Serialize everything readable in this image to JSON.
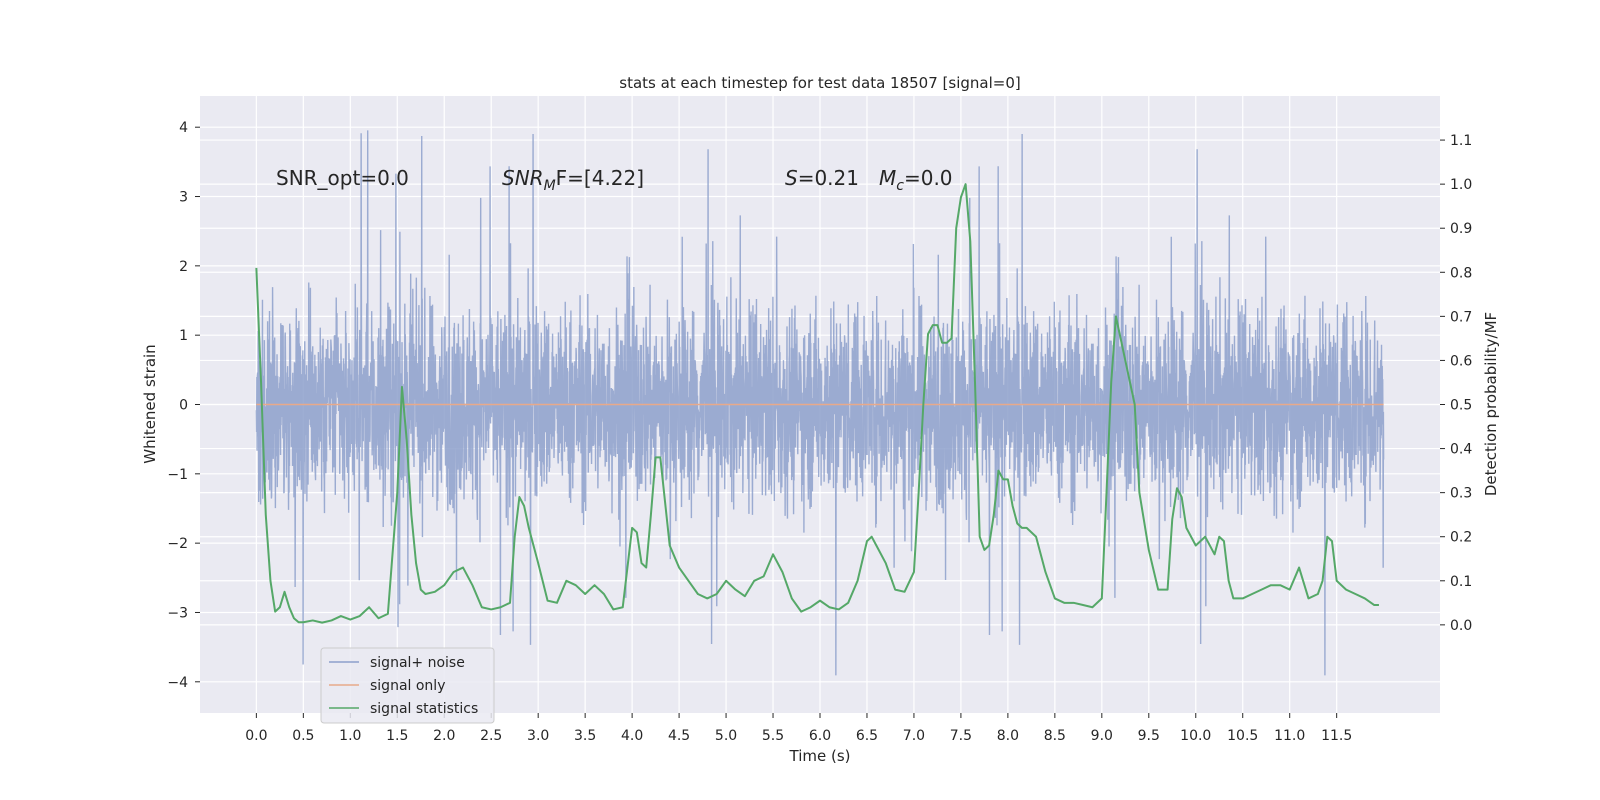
{
  "chart_data": {
    "type": "line",
    "title": "stats at each timestep for test data 18507 [signal=0]",
    "xlabel": "Time (s)",
    "ylabel": "Whitened strain",
    "y2label": "Detection probability/MF",
    "xlim": [
      -0.6,
      12.6
    ],
    "ylim": [
      -4.45,
      4.45
    ],
    "y2lim": [
      -0.2,
      1.2
    ],
    "xticks": [
      0.0,
      0.5,
      1.0,
      1.5,
      2.0,
      2.5,
      3.0,
      3.5,
      4.0,
      4.5,
      5.0,
      5.5,
      6.0,
      6.5,
      7.0,
      7.5,
      8.0,
      8.5,
      9.0,
      9.5,
      10.0,
      10.5,
      11.0,
      11.5
    ],
    "xtick_labels": [
      "0.0",
      "0.5",
      "1.0",
      "1.5",
      "2.0",
      "2.5",
      "3.0",
      "3.5",
      "4.0",
      "4.5",
      "5.0",
      "5.5",
      "6.0",
      "6.5",
      "7.0",
      "7.5",
      "8.0",
      "8.5",
      "9.0",
      "9.5",
      "10.0",
      "10.5",
      "11.0",
      "11.5"
    ],
    "yticks": [
      4,
      3,
      2,
      1,
      0,
      -1,
      -2,
      -3,
      -4
    ],
    "ytick_labels": [
      "4",
      "3",
      "2",
      "1",
      "0",
      "−1",
      "−2",
      "−3",
      "−4"
    ],
    "y2ticks": [
      1.1,
      1.0,
      0.9,
      0.8,
      0.7,
      0.6,
      0.5,
      0.4,
      0.3,
      0.2,
      0.1,
      0.0
    ],
    "y2tick_labels": [
      "1.1",
      "1.0",
      "0.9",
      "0.8",
      "0.7",
      "0.6",
      "0.5",
      "0.4",
      "0.3",
      "0.2",
      "0.1",
      "0.0"
    ],
    "grid": true,
    "legend": {
      "placement": "lower-left",
      "entries": [
        "signal+ noise",
        "signal only",
        "signal statistics"
      ]
    },
    "annotations": {
      "snr_opt": "SNR_opt=0.0",
      "snr_mf_base": "SNR",
      "snr_mf_sub": "M",
      "snr_mf_rest": "F=[4.22]",
      "s_label": "S",
      "s_value": "=0.21",
      "mc_label": "M",
      "mc_sub": "c",
      "mc_value": "=0.0"
    },
    "series": [
      {
        "name": "signal+ noise",
        "color": "#8da0cb",
        "x_range": [
          0.0,
          12.0
        ],
        "amplitude_envelope": {
          "typical_max": 1.9,
          "typical_min": -1.9,
          "peak_max": 4.05,
          "peak_min": -4.05
        }
      },
      {
        "name": "signal only",
        "color": "#e8a98a",
        "x": [
          0.0,
          12.0
        ],
        "y": [
          0.0,
          0.0
        ]
      },
      {
        "name": "signal statistics",
        "color": "#55a868",
        "axis": "right",
        "x": [
          0.0,
          0.05,
          0.1,
          0.15,
          0.2,
          0.25,
          0.3,
          0.35,
          0.4,
          0.45,
          0.5,
          0.6,
          0.7,
          0.8,
          0.9,
          1.0,
          1.1,
          1.2,
          1.3,
          1.4,
          1.5,
          1.55,
          1.6,
          1.65,
          1.7,
          1.75,
          1.8,
          1.9,
          2.0,
          2.1,
          2.2,
          2.3,
          2.4,
          2.5,
          2.6,
          2.7,
          2.75,
          2.8,
          2.85,
          2.9,
          3.0,
          3.1,
          3.2,
          3.3,
          3.4,
          3.5,
          3.6,
          3.7,
          3.8,
          3.9,
          4.0,
          4.05,
          4.1,
          4.15,
          4.2,
          4.25,
          4.3,
          4.35,
          4.4,
          4.5,
          4.6,
          4.7,
          4.8,
          4.9,
          5.0,
          5.1,
          5.2,
          5.3,
          5.4,
          5.5,
          5.6,
          5.7,
          5.8,
          5.9,
          6.0,
          6.1,
          6.2,
          6.3,
          6.4,
          6.5,
          6.55,
          6.6,
          6.7,
          6.8,
          6.9,
          7.0,
          7.05,
          7.1,
          7.15,
          7.2,
          7.25,
          7.3,
          7.35,
          7.4,
          7.45,
          7.5,
          7.55,
          7.6,
          7.65,
          7.7,
          7.75,
          7.8,
          7.85,
          7.9,
          7.95,
          8.0,
          8.05,
          8.1,
          8.15,
          8.2,
          8.3,
          8.4,
          8.5,
          8.6,
          8.7,
          8.8,
          8.9,
          9.0,
          9.05,
          9.1,
          9.15,
          9.2,
          9.25,
          9.3,
          9.35,
          9.4,
          9.5,
          9.6,
          9.7,
          9.75,
          9.8,
          9.85,
          9.9,
          10.0,
          10.1,
          10.2,
          10.25,
          10.3,
          10.35,
          10.4,
          10.5,
          10.6,
          10.7,
          10.8,
          10.9,
          11.0,
          11.1,
          11.2,
          11.3,
          11.35,
          11.4,
          11.45,
          11.5,
          11.6,
          11.7,
          11.8,
          11.9,
          11.95
        ],
        "y": [
          0.81,
          0.55,
          0.25,
          0.1,
          0.03,
          0.04,
          0.075,
          0.04,
          0.015,
          0.006,
          0.006,
          0.01,
          0.005,
          0.01,
          0.02,
          0.012,
          0.02,
          0.04,
          0.015,
          0.025,
          0.3,
          0.54,
          0.42,
          0.25,
          0.14,
          0.08,
          0.07,
          0.075,
          0.09,
          0.12,
          0.13,
          0.09,
          0.04,
          0.035,
          0.04,
          0.05,
          0.2,
          0.29,
          0.27,
          0.22,
          0.14,
          0.055,
          0.05,
          0.1,
          0.09,
          0.07,
          0.09,
          0.07,
          0.035,
          0.04,
          0.22,
          0.21,
          0.14,
          0.13,
          0.25,
          0.38,
          0.38,
          0.28,
          0.18,
          0.13,
          0.1,
          0.07,
          0.06,
          0.07,
          0.1,
          0.08,
          0.065,
          0.1,
          0.11,
          0.16,
          0.12,
          0.06,
          0.03,
          0.04,
          0.055,
          0.04,
          0.035,
          0.05,
          0.1,
          0.19,
          0.2,
          0.18,
          0.14,
          0.08,
          0.075,
          0.12,
          0.3,
          0.5,
          0.66,
          0.68,
          0.68,
          0.64,
          0.64,
          0.65,
          0.9,
          0.97,
          1.0,
          0.87,
          0.55,
          0.2,
          0.17,
          0.18,
          0.25,
          0.35,
          0.33,
          0.33,
          0.27,
          0.23,
          0.22,
          0.22,
          0.2,
          0.12,
          0.06,
          0.05,
          0.05,
          0.045,
          0.04,
          0.06,
          0.3,
          0.55,
          0.7,
          0.65,
          0.6,
          0.55,
          0.5,
          0.3,
          0.17,
          0.08,
          0.08,
          0.24,
          0.31,
          0.29,
          0.22,
          0.18,
          0.2,
          0.16,
          0.2,
          0.19,
          0.1,
          0.06,
          0.06,
          0.07,
          0.08,
          0.09,
          0.09,
          0.08,
          0.13,
          0.06,
          0.07,
          0.1,
          0.2,
          0.19,
          0.1,
          0.08,
          0.07,
          0.06,
          0.045,
          0.045
        ]
      }
    ]
  }
}
